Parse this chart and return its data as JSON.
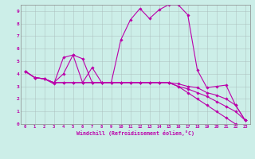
{
  "xlabel": "Windchill (Refroidissement éolien,°C)",
  "xlim": [
    -0.5,
    23.5
  ],
  "ylim": [
    0,
    9.5
  ],
  "xticks": [
    0,
    1,
    2,
    3,
    4,
    5,
    6,
    7,
    8,
    9,
    10,
    11,
    12,
    13,
    14,
    15,
    16,
    17,
    18,
    19,
    20,
    21,
    22,
    23
  ],
  "yticks": [
    0,
    1,
    2,
    3,
    4,
    5,
    6,
    7,
    8,
    9
  ],
  "bg_color": "#cceee8",
  "line_color": "#bb00aa",
  "line1_x": [
    0,
    1,
    2,
    3,
    4,
    5,
    6,
    7,
    8,
    9,
    10,
    11,
    12,
    13,
    14,
    15,
    16,
    17,
    18,
    19,
    20,
    21,
    22,
    23
  ],
  "line1_y": [
    4.2,
    3.7,
    3.6,
    3.2,
    5.3,
    5.5,
    3.3,
    4.5,
    3.3,
    3.3,
    6.7,
    8.3,
    9.2,
    8.4,
    9.1,
    9.5,
    9.5,
    8.7,
    4.3,
    2.9,
    3.0,
    3.1,
    1.5,
    0.3
  ],
  "line2_x": [
    0,
    1,
    2,
    3,
    4,
    5,
    6,
    7,
    8,
    9,
    10,
    11,
    12,
    13,
    14,
    15,
    16,
    17,
    18,
    19,
    20,
    21,
    22,
    23
  ],
  "line2_y": [
    4.2,
    3.7,
    3.6,
    3.3,
    4.0,
    5.5,
    5.2,
    3.3,
    3.3,
    3.3,
    3.3,
    3.3,
    3.3,
    3.3,
    3.3,
    3.3,
    3.2,
    3.0,
    2.9,
    2.5,
    2.3,
    2.0,
    1.5,
    0.3
  ],
  "line3_x": [
    0,
    1,
    2,
    3,
    4,
    5,
    6,
    7,
    8,
    9,
    10,
    11,
    12,
    13,
    14,
    15,
    16,
    17,
    18,
    19,
    20,
    21,
    22,
    23
  ],
  "line3_y": [
    4.2,
    3.7,
    3.6,
    3.3,
    3.3,
    3.3,
    3.3,
    3.3,
    3.3,
    3.3,
    3.3,
    3.3,
    3.3,
    3.3,
    3.3,
    3.3,
    3.0,
    2.8,
    2.5,
    2.2,
    1.8,
    1.4,
    1.0,
    0.3
  ],
  "line4_x": [
    0,
    1,
    2,
    3,
    4,
    5,
    6,
    7,
    8,
    9,
    10,
    11,
    12,
    13,
    14,
    15,
    16,
    17,
    18,
    19,
    20,
    21,
    22,
    23
  ],
  "line4_y": [
    4.2,
    3.7,
    3.6,
    3.3,
    3.3,
    3.3,
    3.3,
    3.3,
    3.3,
    3.3,
    3.3,
    3.3,
    3.3,
    3.3,
    3.3,
    3.3,
    3.0,
    2.5,
    2.0,
    1.5,
    1.0,
    0.5,
    0.0,
    -0.2
  ]
}
